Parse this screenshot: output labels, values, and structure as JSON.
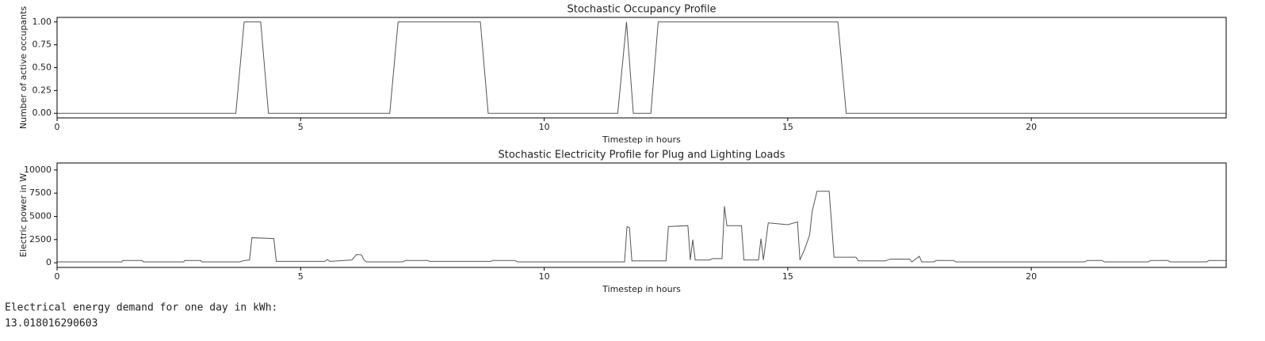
{
  "chart_data": [
    {
      "type": "line",
      "title": "Stochastic Occupancy Profile",
      "xlabel": "Timestep in hours",
      "ylabel": "Number of active occupants",
      "x": [
        0,
        3.67,
        3.84,
        4.18,
        4.34,
        6.83,
        7.0,
        8.69,
        8.85,
        11.51,
        11.69,
        11.83,
        12.19,
        12.34,
        16.03,
        16.2,
        24
      ],
      "values": [
        0,
        0,
        1,
        1,
        0,
        0,
        1,
        1,
        0,
        0,
        1,
        0,
        0,
        1,
        1,
        0,
        0
      ],
      "color": "#555555",
      "xlim": [
        0,
        24
      ],
      "xticks": [
        0,
        5,
        10,
        15,
        20
      ],
      "ylim": [
        -0.05,
        1.05
      ],
      "yticks": [
        {
          "value": 0,
          "label": "0.00"
        },
        0.25,
        {
          "value": 0.5,
          "label": "0.50"
        },
        0.75,
        {
          "value": 1,
          "label": "1.00"
        }
      ]
    },
    {
      "type": "line",
      "title": "Stochastic Electricity Profile for Plug and Lighting Loads",
      "xlabel": "Timestep in hours",
      "ylabel": "Electric power in W",
      "x": [
        0,
        1.33,
        1.35,
        1.75,
        1.77,
        2.6,
        2.62,
        2.95,
        2.97,
        3.75,
        3.85,
        3.95,
        4.0,
        4.45,
        4.5,
        5.5,
        5.55,
        5.6,
        6.05,
        6.15,
        6.25,
        6.3,
        6.35,
        7.1,
        7.15,
        7.6,
        7.65,
        8.9,
        8.95,
        9.4,
        9.45,
        11.65,
        11.7,
        11.75,
        11.8,
        12.5,
        12.55,
        12.95,
        13.0,
        13.05,
        13.1,
        13.4,
        13.45,
        13.65,
        13.7,
        13.75,
        14.05,
        14.1,
        14.4,
        14.45,
        14.5,
        14.6,
        15.0,
        15.2,
        15.25,
        15.35,
        15.45,
        15.5,
        15.6,
        15.85,
        15.9,
        15.95,
        16.4,
        16.45,
        17.0,
        17.1,
        17.5,
        17.55,
        17.7,
        17.75,
        18.0,
        18.05,
        18.4,
        18.45,
        21.1,
        21.15,
        21.45,
        21.5,
        22.4,
        22.45,
        22.8,
        22.85,
        23.6,
        23.65,
        24
      ],
      "values": [
        100,
        100,
        250,
        250,
        100,
        100,
        250,
        250,
        100,
        100,
        250,
        300,
        2700,
        2600,
        150,
        150,
        350,
        150,
        300,
        900,
        850,
        300,
        100,
        100,
        250,
        250,
        150,
        150,
        250,
        250,
        100,
        100,
        3900,
        3800,
        200,
        200,
        3900,
        4000,
        300,
        2500,
        300,
        300,
        450,
        450,
        6100,
        4000,
        4000,
        300,
        300,
        2600,
        300,
        4300,
        4100,
        4400,
        300,
        1500,
        3000,
        5500,
        7700,
        7700,
        4200,
        600,
        600,
        200,
        200,
        400,
        400,
        100,
        700,
        100,
        100,
        250,
        250,
        100,
        100,
        250,
        250,
        100,
        100,
        250,
        250,
        100,
        100,
        250,
        250
      ],
      "color": "#555555",
      "xlim": [
        0,
        24
      ],
      "xticks": [
        0,
        5,
        10,
        15,
        20
      ],
      "ylim": [
        -500,
        10750
      ],
      "yticks": [
        0,
        2500,
        5000,
        7500,
        10000
      ]
    }
  ],
  "console_output": {
    "lines": [
      "Electrical energy demand for one day in kWh:",
      "13.018016290603"
    ]
  }
}
